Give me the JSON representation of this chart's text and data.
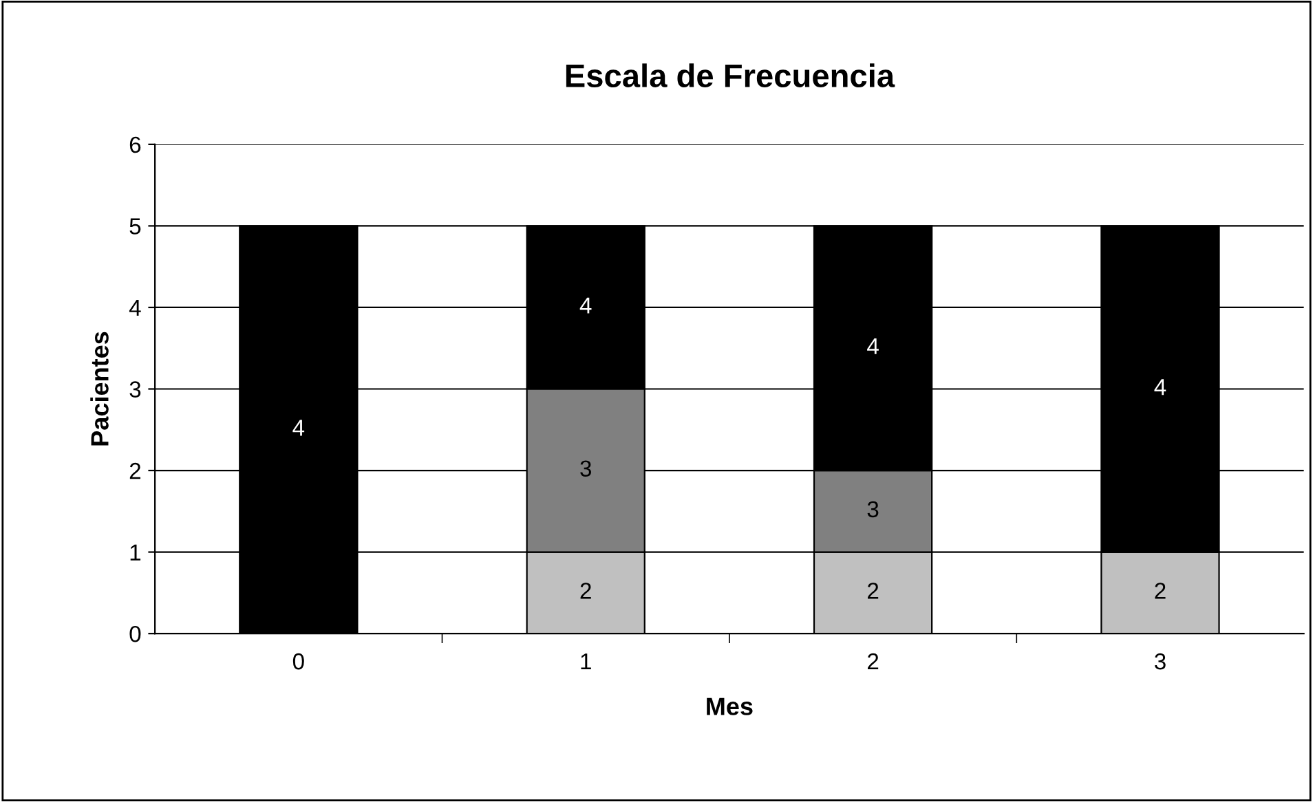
{
  "chart_data": {
    "type": "bar",
    "title": "Escala de Frecuencia",
    "xlabel": "Mes",
    "ylabel": "Pacientes",
    "categories": [
      "0",
      "1",
      "2",
      "3"
    ],
    "stacked": true,
    "series": [
      {
        "name": "2",
        "color": "#c0c0c0",
        "values": [
          0,
          1,
          1,
          1
        ]
      },
      {
        "name": "3",
        "color": "#808080",
        "values": [
          0,
          2,
          1,
          0
        ]
      },
      {
        "name": "4",
        "color": "#000000",
        "values": [
          5,
          2,
          3,
          4
        ]
      }
    ],
    "ylim": [
      0,
      6
    ],
    "yticks": [
      0,
      1,
      2,
      3,
      4,
      5,
      6
    ],
    "grid": "y",
    "legend": false
  }
}
